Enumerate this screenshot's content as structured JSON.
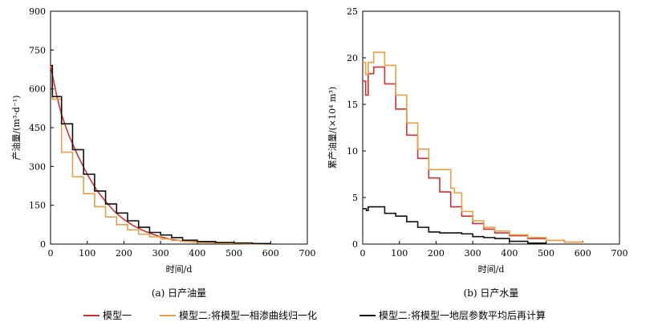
{
  "colors": {
    "model1": "#d62f2f",
    "model2_norm": "#e8a043",
    "model2_avg": "#111111"
  },
  "legend": [
    {
      "label": "模型一",
      "color_key": "model1"
    },
    {
      "label": "模型二:将模型一相渗曲线归一化",
      "color_key": "model2_norm"
    },
    {
      "label": "模型二:将模型一地层参数平均后再计算",
      "color_key": "model2_avg"
    }
  ],
  "chart_data": [
    {
      "type": "line",
      "caption": "(a) 日产油量",
      "xlabel": "时间/d",
      "ylabel": "产油量/(m³·d⁻¹)",
      "xlim": [
        0,
        700
      ],
      "ylim": [
        0,
        900
      ],
      "xticks": [
        "0",
        "100",
        "200",
        "300",
        "400",
        "500",
        "600",
        "700"
      ],
      "yticks": [
        "0",
        "150",
        "300",
        "450",
        "600",
        "750",
        "900"
      ],
      "series": [
        {
          "key": "model1",
          "step": false,
          "x": [
            0,
            15,
            30,
            50,
            75,
            100,
            125,
            150,
            175,
            200,
            225,
            250,
            275,
            300,
            330,
            360,
            400,
            450,
            500,
            550,
            600
          ],
          "y": [
            690,
            585,
            500,
            420,
            340,
            270,
            210,
            165,
            125,
            95,
            72,
            54,
            40,
            28,
            18,
            12,
            8,
            5,
            3,
            1,
            0
          ]
        },
        {
          "key": "model2_norm",
          "step": true,
          "x": [
            0,
            5,
            30,
            60,
            90,
            120,
            150,
            180,
            210,
            240,
            270,
            300,
            330,
            360,
            400,
            450,
            500,
            550,
            600
          ],
          "y": [
            685,
            560,
            355,
            260,
            195,
            145,
            105,
            75,
            55,
            38,
            28,
            20,
            14,
            10,
            6,
            3,
            2,
            1,
            0
          ]
        },
        {
          "key": "model2_avg",
          "step": true,
          "x": [
            0,
            5,
            30,
            60,
            90,
            120,
            150,
            180,
            210,
            240,
            270,
            300,
            330,
            360,
            400,
            450,
            500,
            550,
            600
          ],
          "y": [
            690,
            570,
            465,
            365,
            270,
            205,
            155,
            120,
            90,
            65,
            45,
            35,
            25,
            15,
            10,
            6,
            4,
            2,
            0
          ]
        }
      ]
    },
    {
      "type": "line",
      "caption": "(b) 日产水量",
      "xlabel": "时间/d",
      "ylabel": "累产油量/(×10⁴ m³)",
      "xlim": [
        0,
        700
      ],
      "ylim": [
        0,
        25
      ],
      "xticks": [
        "0",
        "100",
        "200",
        "300",
        "400",
        "500",
        "600",
        "700"
      ],
      "yticks": [
        "0",
        "5",
        "10",
        "15",
        "20",
        "25"
      ],
      "series": [
        {
          "key": "model1",
          "step": true,
          "x": [
            0,
            8,
            15,
            30,
            60,
            90,
            120,
            150,
            180,
            210,
            240,
            270,
            300,
            330,
            360,
            400,
            450,
            500,
            550,
            600
          ],
          "y": [
            17.5,
            16.0,
            18.3,
            19.0,
            17.2,
            14.5,
            11.7,
            9.2,
            7.1,
            5.6,
            4.0,
            3.0,
            2.2,
            1.6,
            1.2,
            0.9,
            0.6,
            0.4,
            0.2,
            0
          ]
        },
        {
          "key": "model2_norm",
          "step": true,
          "x": [
            0,
            8,
            15,
            30,
            60,
            90,
            120,
            150,
            180,
            210,
            240,
            250,
            270,
            300,
            330,
            360,
            400,
            450,
            500,
            550,
            600
          ],
          "y": [
            19.5,
            18.2,
            19.5,
            20.6,
            19.2,
            16.0,
            13.0,
            10.2,
            8.0,
            8.0,
            6.0,
            5.5,
            3.5,
            2.5,
            1.8,
            1.4,
            1.0,
            0.7,
            0.4,
            0.2,
            0
          ]
        },
        {
          "key": "model2_avg",
          "step": true,
          "x": [
            0,
            10,
            15,
            35,
            60,
            90,
            120,
            150,
            180,
            210,
            240,
            270,
            300,
            330,
            360,
            400,
            450,
            500
          ],
          "y": [
            3.8,
            3.6,
            4.0,
            4.0,
            3.3,
            3.0,
            2.4,
            1.8,
            1.3,
            1.2,
            1.2,
            1.1,
            0.8,
            0.7,
            0.6,
            0.3,
            0.1,
            0
          ]
        }
      ]
    }
  ]
}
